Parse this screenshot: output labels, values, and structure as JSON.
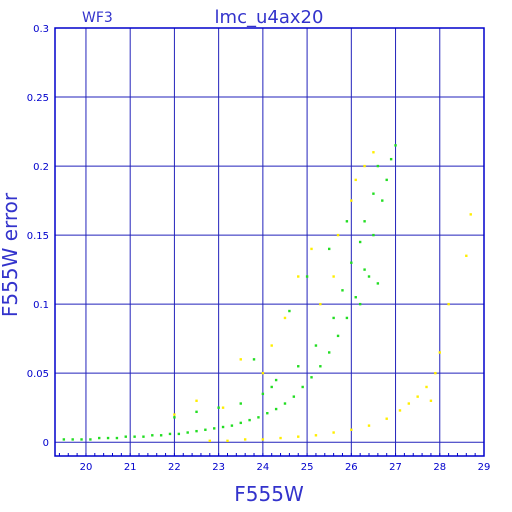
{
  "chart_data": {
    "type": "scatter",
    "title": "lmc_u4ax20",
    "corner_label": "WF3",
    "xlabel": "F555W",
    "ylabel": "F555W error",
    "xlim": [
      19.3,
      29
    ],
    "ylim": [
      -0.01,
      0.3
    ],
    "x_ticks": [
      "20",
      "21",
      "22",
      "23",
      "24",
      "25",
      "26",
      "27",
      "28",
      "29"
    ],
    "y_ticks": [
      "0",
      "0.05",
      "0.1",
      "0.15",
      "0.2",
      "0.25",
      "0.3"
    ],
    "grid": true,
    "colors": {
      "axes": "#0000cc",
      "grid": "#2222bb",
      "text": "#3333cc",
      "green_points": "#22dd22",
      "yellow_points": "#ffee00"
    },
    "series": [
      {
        "color": "#22dd22",
        "points": [
          [
            19.5,
            0.002
          ],
          [
            19.7,
            0.002
          ],
          [
            19.9,
            0.002
          ],
          [
            20.1,
            0.002
          ],
          [
            20.3,
            0.003
          ],
          [
            20.5,
            0.003
          ],
          [
            20.7,
            0.003
          ],
          [
            20.9,
            0.004
          ],
          [
            21.1,
            0.004
          ],
          [
            21.3,
            0.004
          ],
          [
            21.5,
            0.005
          ],
          [
            21.7,
            0.005
          ],
          [
            21.9,
            0.006
          ],
          [
            22.1,
            0.006
          ],
          [
            22.3,
            0.007
          ],
          [
            22.5,
            0.008
          ],
          [
            22.7,
            0.009
          ],
          [
            22.9,
            0.01
          ],
          [
            23.1,
            0.011
          ],
          [
            23.3,
            0.012
          ],
          [
            23.5,
            0.014
          ],
          [
            23.7,
            0.016
          ],
          [
            23.9,
            0.018
          ],
          [
            24.1,
            0.021
          ],
          [
            24.3,
            0.024
          ],
          [
            24.5,
            0.028
          ],
          [
            24.7,
            0.033
          ],
          [
            24.9,
            0.04
          ],
          [
            25.1,
            0.047
          ],
          [
            25.3,
            0.055
          ],
          [
            25.5,
            0.065
          ],
          [
            25.7,
            0.077
          ],
          [
            25.9,
            0.09
          ],
          [
            26.1,
            0.105
          ],
          [
            26.3,
            0.125
          ],
          [
            26.5,
            0.15
          ],
          [
            26.7,
            0.175
          ],
          [
            26.8,
            0.19
          ],
          [
            26.9,
            0.205
          ],
          [
            27.0,
            0.215
          ],
          [
            22.0,
            0.018
          ],
          [
            22.5,
            0.022
          ],
          [
            23.0,
            0.025
          ],
          [
            23.5,
            0.028
          ],
          [
            24.0,
            0.035
          ],
          [
            24.3,
            0.045
          ],
          [
            24.8,
            0.055
          ],
          [
            25.2,
            0.07
          ],
          [
            25.6,
            0.09
          ],
          [
            25.8,
            0.11
          ],
          [
            26.0,
            0.13
          ],
          [
            26.2,
            0.145
          ],
          [
            26.3,
            0.16
          ],
          [
            26.5,
            0.18
          ],
          [
            26.6,
            0.2
          ],
          [
            25.5,
            0.14
          ],
          [
            25.9,
            0.16
          ],
          [
            26.4,
            0.12
          ],
          [
            24.6,
            0.095
          ],
          [
            23.8,
            0.06
          ],
          [
            25.0,
            0.12
          ],
          [
            26.6,
            0.115
          ],
          [
            26.2,
            0.1
          ],
          [
            24.2,
            0.04
          ]
        ]
      },
      {
        "color": "#ffee00",
        "points": [
          [
            22.8,
            0.001
          ],
          [
            23.2,
            0.001
          ],
          [
            23.6,
            0.002
          ],
          [
            24.0,
            0.002
          ],
          [
            24.4,
            0.003
          ],
          [
            24.8,
            0.004
          ],
          [
            25.2,
            0.005
          ],
          [
            25.6,
            0.007
          ],
          [
            26.0,
            0.009
          ],
          [
            26.4,
            0.012
          ],
          [
            26.8,
            0.017
          ],
          [
            27.1,
            0.023
          ],
          [
            27.3,
            0.028
          ],
          [
            27.5,
            0.033
          ],
          [
            27.7,
            0.04
          ],
          [
            27.9,
            0.05
          ],
          [
            28.0,
            0.065
          ],
          [
            22.0,
            0.02
          ],
          [
            22.5,
            0.03
          ],
          [
            23.1,
            0.025
          ],
          [
            23.5,
            0.06
          ],
          [
            24.0,
            0.05
          ],
          [
            24.2,
            0.07
          ],
          [
            24.5,
            0.09
          ],
          [
            24.8,
            0.12
          ],
          [
            25.1,
            0.14
          ],
          [
            25.3,
            0.1
          ],
          [
            25.7,
            0.15
          ],
          [
            26.0,
            0.175
          ],
          [
            26.3,
            0.2
          ],
          [
            26.5,
            0.21
          ],
          [
            25.6,
            0.12
          ],
          [
            26.1,
            0.19
          ],
          [
            28.2,
            0.1
          ],
          [
            28.6,
            0.135
          ],
          [
            28.7,
            0.165
          ],
          [
            27.8,
            0.03
          ]
        ]
      }
    ]
  }
}
